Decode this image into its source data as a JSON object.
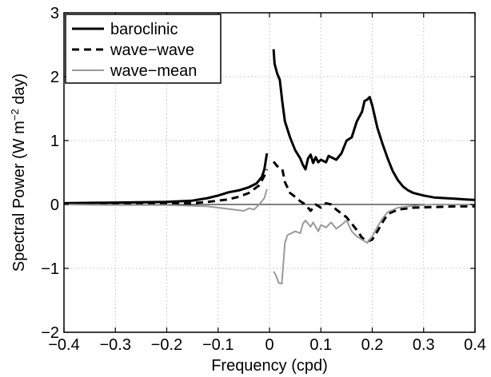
{
  "chart_data": {
    "type": "line",
    "title": "",
    "xlabel": "Frequency (cpd)",
    "ylabel_parts": [
      "Spectral Power (W m",
      "−2",
      " day)"
    ],
    "xlim": [
      -0.4,
      0.4
    ],
    "ylim": [
      -2,
      3
    ],
    "xticks": [
      -0.4,
      -0.3,
      -0.2,
      -0.1,
      0,
      0.1,
      0.2,
      0.3,
      0.4
    ],
    "xtick_labels": [
      "−0.4",
      "−0.3",
      "−0.2",
      "−0.1",
      "0",
      "0.1",
      "0.2",
      "0.3",
      "0.4"
    ],
    "yticks": [
      -2,
      -1,
      0,
      1,
      2,
      3
    ],
    "ytick_labels": [
      "−2",
      "−1",
      "0",
      "1",
      "2",
      "3"
    ],
    "grid": true,
    "legend_position": "top-left",
    "series": [
      {
        "name": "baroclinic",
        "color": "#000000",
        "style": "solid",
        "width": 3,
        "segments": [
          [
            [
              -0.4,
              0.02
            ],
            [
              -0.3,
              0.03
            ],
            [
              -0.2,
              0.04
            ],
            [
              -0.15,
              0.06
            ],
            [
              -0.12,
              0.1
            ],
            [
              -0.1,
              0.14
            ],
            [
              -0.08,
              0.19
            ],
            [
              -0.06,
              0.22
            ],
            [
              -0.04,
              0.27
            ],
            [
              -0.025,
              0.33
            ],
            [
              -0.015,
              0.43
            ],
            [
              -0.01,
              0.55
            ],
            [
              -0.005,
              0.8
            ]
          ],
          [
            [
              0.008,
              2.43
            ],
            [
              0.01,
              2.2
            ],
            [
              0.015,
              2.05
            ],
            [
              0.02,
              1.95
            ],
            [
              0.025,
              1.6
            ],
            [
              0.03,
              1.3
            ],
            [
              0.04,
              1.05
            ],
            [
              0.05,
              0.85
            ],
            [
              0.06,
              0.72
            ],
            [
              0.065,
              0.62
            ],
            [
              0.07,
              0.55
            ],
            [
              0.075,
              0.72
            ],
            [
              0.08,
              0.78
            ],
            [
              0.085,
              0.65
            ],
            [
              0.09,
              0.74
            ],
            [
              0.095,
              0.66
            ],
            [
              0.1,
              0.7
            ],
            [
              0.11,
              0.66
            ],
            [
              0.115,
              0.76
            ],
            [
              0.12,
              0.74
            ],
            [
              0.13,
              0.7
            ],
            [
              0.14,
              0.8
            ],
            [
              0.15,
              1.0
            ],
            [
              0.16,
              1.05
            ],
            [
              0.17,
              1.3
            ],
            [
              0.18,
              1.45
            ],
            [
              0.185,
              1.62
            ],
            [
              0.19,
              1.64
            ],
            [
              0.195,
              1.68
            ],
            [
              0.2,
              1.55
            ],
            [
              0.21,
              1.2
            ],
            [
              0.22,
              0.95
            ],
            [
              0.23,
              0.72
            ],
            [
              0.24,
              0.52
            ],
            [
              0.25,
              0.38
            ],
            [
              0.26,
              0.28
            ],
            [
              0.27,
              0.22
            ],
            [
              0.28,
              0.18
            ],
            [
              0.3,
              0.14
            ],
            [
              0.32,
              0.11
            ],
            [
              0.34,
              0.1
            ],
            [
              0.36,
              0.09
            ],
            [
              0.38,
              0.08
            ],
            [
              0.4,
              0.07
            ]
          ]
        ]
      },
      {
        "name": "wave−wave",
        "color": "#000000",
        "style": "dashed",
        "width": 3,
        "segments": [
          [
            [
              -0.4,
              0.01
            ],
            [
              -0.3,
              0.01
            ],
            [
              -0.2,
              0.01
            ],
            [
              -0.15,
              0.02
            ],
            [
              -0.12,
              0.04
            ],
            [
              -0.1,
              0.06
            ],
            [
              -0.08,
              0.08
            ],
            [
              -0.06,
              0.12
            ],
            [
              -0.04,
              0.18
            ],
            [
              -0.02,
              0.3
            ],
            [
              -0.01,
              0.45
            ],
            [
              -0.005,
              0.55
            ]
          ],
          [
            [
              0.008,
              0.67
            ],
            [
              0.015,
              0.6
            ],
            [
              0.025,
              0.55
            ],
            [
              0.03,
              0.35
            ],
            [
              0.04,
              0.18
            ],
            [
              0.05,
              0.12
            ],
            [
              0.06,
              0.05
            ],
            [
              0.07,
              0.0
            ],
            [
              0.08,
              -0.1
            ],
            [
              0.09,
              0.0
            ],
            [
              0.1,
              -0.05
            ],
            [
              0.11,
              0.02
            ],
            [
              0.12,
              0.0
            ],
            [
              0.13,
              -0.08
            ],
            [
              0.15,
              -0.2
            ],
            [
              0.17,
              -0.4
            ],
            [
              0.18,
              -0.52
            ],
            [
              0.19,
              -0.58
            ],
            [
              0.2,
              -0.55
            ],
            [
              0.21,
              -0.42
            ],
            [
              0.22,
              -0.28
            ],
            [
              0.23,
              -0.15
            ],
            [
              0.25,
              -0.08
            ],
            [
              0.28,
              -0.05
            ],
            [
              0.32,
              -0.04
            ],
            [
              0.36,
              -0.03
            ],
            [
              0.4,
              -0.03
            ]
          ]
        ]
      },
      {
        "name": "wave−mean",
        "color": "#9a9a9a",
        "style": "solid",
        "width": 2,
        "segments": [
          [
            [
              -0.4,
              0.0
            ],
            [
              -0.3,
              -0.01
            ],
            [
              -0.2,
              -0.01
            ],
            [
              -0.15,
              -0.02
            ],
            [
              -0.12,
              -0.03
            ],
            [
              -0.1,
              -0.05
            ],
            [
              -0.07,
              -0.08
            ],
            [
              -0.05,
              -0.1
            ],
            [
              -0.04,
              -0.06
            ],
            [
              -0.03,
              -0.08
            ],
            [
              -0.02,
              0.0
            ],
            [
              -0.01,
              0.1
            ],
            [
              -0.005,
              0.24
            ]
          ],
          [
            [
              0.008,
              -1.05
            ],
            [
              0.012,
              -1.1
            ],
            [
              0.018,
              -1.23
            ],
            [
              0.024,
              -1.24
            ],
            [
              0.03,
              -0.6
            ],
            [
              0.035,
              -0.48
            ],
            [
              0.05,
              -0.42
            ],
            [
              0.06,
              -0.45
            ],
            [
              0.065,
              -0.3
            ],
            [
              0.07,
              -0.25
            ],
            [
              0.08,
              -0.35
            ],
            [
              0.085,
              -0.28
            ],
            [
              0.095,
              -0.42
            ],
            [
              0.1,
              -0.32
            ],
            [
              0.11,
              -0.36
            ],
            [
              0.12,
              -0.28
            ],
            [
              0.13,
              -0.38
            ],
            [
              0.14,
              -0.32
            ],
            [
              0.15,
              -0.25
            ],
            [
              0.16,
              -0.42
            ],
            [
              0.17,
              -0.5
            ],
            [
              0.18,
              -0.55
            ],
            [
              0.19,
              -0.6
            ],
            [
              0.2,
              -0.5
            ],
            [
              0.21,
              -0.35
            ],
            [
              0.22,
              -0.22
            ],
            [
              0.23,
              -0.12
            ],
            [
              0.25,
              -0.05
            ],
            [
              0.28,
              -0.02
            ],
            [
              0.32,
              0.0
            ],
            [
              0.36,
              0.0
            ],
            [
              0.4,
              0.0
            ]
          ]
        ]
      }
    ]
  }
}
